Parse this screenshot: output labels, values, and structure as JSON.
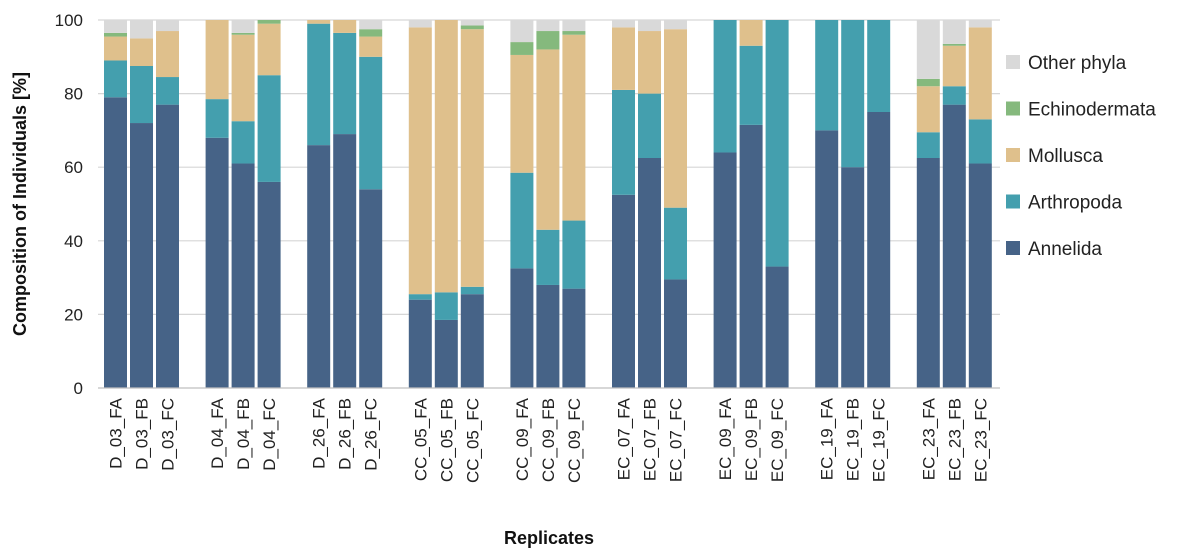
{
  "chart_data": {
    "type": "bar",
    "stacked": true,
    "xlabel": "Replicates",
    "ylabel": "Composition of Individuals [%]",
    "ylim": [
      0,
      100
    ],
    "yticks": [
      0,
      20,
      40,
      60,
      80,
      100
    ],
    "grid": true,
    "legend_position": "right",
    "groups": [
      [
        "D_03_FA",
        "D_03_FB",
        "D_03_FC"
      ],
      [
        "D_04_FA",
        "D_04_FB",
        "D_04_FC"
      ],
      [
        "D_26_FA",
        "D_26_FB",
        "D_26_FC"
      ],
      [
        "CC_05_FA",
        "CC_05_FB",
        "CC_05_FC"
      ],
      [
        "CC_09_FA",
        "CC_09_FB",
        "CC_09_FC"
      ],
      [
        "EC_07_FA",
        "EC_07_FB",
        "EC_07_FC"
      ],
      [
        "EC_09_FA",
        "EC_09_FB",
        "EC_09_FC"
      ],
      [
        "EC_19_FA",
        "EC_19_FB",
        "EC_19_FC"
      ],
      [
        "EC_23_FA",
        "EC_23_FB",
        "EC_23_FC"
      ]
    ],
    "categories": [
      "D_03_FA",
      "D_03_FB",
      "D_03_FC",
      "D_04_FA",
      "D_04_FB",
      "D_04_FC",
      "D_26_FA",
      "D_26_FB",
      "D_26_FC",
      "CC_05_FA",
      "CC_05_FB",
      "CC_05_FC",
      "CC_09_FA",
      "CC_09_FB",
      "CC_09_FC",
      "EC_07_FA",
      "EC_07_FB",
      "EC_07_FC",
      "EC_09_FA",
      "EC_09_FB",
      "EC_09_FC",
      "EC_19_FA",
      "EC_19_FB",
      "EC_19_FC",
      "EC_23_FA",
      "EC_23_FB",
      "EC_23_FC"
    ],
    "series": [
      {
        "name": "Annelida",
        "color": "#466387",
        "values": [
          79,
          72,
          77,
          68,
          61,
          56,
          66,
          69,
          54,
          24,
          18.5,
          25.5,
          32.5,
          28,
          27,
          52.5,
          62.5,
          29.5,
          64,
          71.5,
          33,
          70,
          60,
          75,
          62.5,
          77,
          61
        ]
      },
      {
        "name": "Arthropoda",
        "color": "#449fae",
        "values": [
          10,
          15.5,
          7.5,
          10.5,
          11.5,
          29,
          33,
          27.5,
          36,
          1.5,
          7.5,
          2,
          26,
          15,
          18.5,
          28.5,
          17.5,
          19.5,
          36,
          21.5,
          67,
          30,
          40,
          25,
          7,
          5,
          12
        ]
      },
      {
        "name": "Mollusca",
        "color": "#dfc08c",
        "values": [
          6.5,
          7.5,
          12.5,
          21.5,
          23.5,
          14,
          1,
          3.5,
          5.5,
          72.5,
          74,
          70,
          32,
          49,
          50.5,
          17,
          17,
          48.5,
          0,
          7,
          0,
          0,
          0,
          0,
          12.5,
          11,
          25
        ]
      },
      {
        "name": "Echinodermata",
        "color": "#85b97d",
        "values": [
          1,
          0,
          0,
          0,
          0.5,
          1,
          0,
          0,
          2,
          0,
          0,
          1,
          3.5,
          5,
          1,
          0,
          0,
          0,
          0,
          0,
          0,
          0,
          0,
          0,
          2,
          0.5,
          0
        ]
      },
      {
        "name": "Other phyla",
        "color": "#d9d9d9",
        "values": [
          3.5,
          5,
          3,
          0,
          3.5,
          0,
          0,
          0,
          2.5,
          2,
          0,
          1.5,
          6,
          3,
          3,
          2.5,
          3,
          2.5,
          0,
          0,
          0,
          0,
          0,
          0,
          16,
          6.5,
          2
        ]
      }
    ]
  }
}
